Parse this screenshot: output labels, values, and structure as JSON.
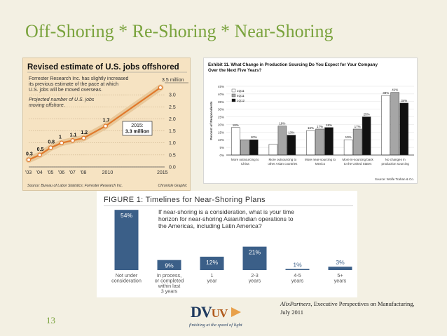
{
  "slide": {
    "title": "Off-Shoring  * Re-Shoring * Near-Shoring",
    "page_number": "13",
    "logo": {
      "letters": "DV",
      "sub": "UV",
      "tagline": "finishing at the speed of light"
    },
    "citation": {
      "source": "AlixPartners",
      "rest": ", Executive Perspectives on Manufacturing, July 2011"
    }
  },
  "chart_data": [
    {
      "type": "line",
      "title": "Revised estimate of U.S. jobs offshored",
      "description": [
        "Forrester Research Inc. has slightly increased",
        "its previous estimate of the pace at which",
        "U.S. jobs will be moved overseas."
      ],
      "series_note": [
        "Projected number of U.S. jobs",
        "moving offshore."
      ],
      "x": [
        2003,
        2004,
        2005,
        2006,
        2007,
        2008,
        2010,
        2015
      ],
      "x_tick_labels": [
        "'03",
        "'04",
        "'05",
        "'06",
        "'07",
        "'08",
        "2010",
        "2015"
      ],
      "values": [
        0.3,
        0.5,
        0.8,
        1,
        1.1,
        1.2,
        1.7,
        3.3
      ],
      "value_labels": [
        "0.3",
        "0.5",
        "0.8",
        "1",
        "1.1",
        "1.2",
        "1.7",
        ""
      ],
      "ylim": [
        0,
        3.5
      ],
      "y_ticks": [
        0,
        0.5,
        1.0,
        1.5,
        2.0,
        2.5,
        3.0
      ],
      "y_tick_labels": [
        "0.0",
        "0.5",
        "1.0",
        "1.5",
        "2.0",
        "2.5",
        "3.0"
      ],
      "y_top_label": "3.5 million",
      "callout": {
        "line1": "2015:",
        "line2": "3.3 million"
      },
      "source": "Source: Bureau of Labor Statistics; Forrester Research Inc.",
      "credit": "Chronicle Graphic",
      "colors": {
        "line": "#e0792b",
        "marker": "#ffffff",
        "band": "#e8c89a"
      }
    },
    {
      "type": "bar",
      "title": "Exhibit 11. What Change in Production Sourcing Do You Expect for Your Company Over the Next Five Years?",
      "ylabel": "Percent of Respondents",
      "ylim": [
        0,
        45
      ],
      "y_ticks": [
        0,
        5,
        10,
        15,
        20,
        25,
        30,
        35,
        40,
        45
      ],
      "categories": [
        [
          "More outsourcing to",
          "China"
        ],
        [
          "More outsourcing to",
          "other Asian countries"
        ],
        [
          "More near-sourcing to",
          "Mexico"
        ],
        [
          "More in-sourcing back",
          "to the United States"
        ],
        [
          "No changes in",
          "production sourcing"
        ]
      ],
      "series": [
        {
          "name": "1Q11",
          "values": [
            18,
            7,
            16,
            10,
            39
          ],
          "color": "#ffffff"
        },
        {
          "name": "4Q11",
          "values": [
            10,
            19,
            17,
            17,
            41
          ],
          "color": "#a6a6a6"
        },
        {
          "name": "1Q12",
          "values": [
            10,
            13,
            18,
            25,
            34
          ],
          "color": "#111111"
        }
      ],
      "value_labels": [
        [
          "18%",
          "",
          "",
          "10%"
        ],
        [
          "7%",
          "18%",
          "19%",
          "13%"
        ],
        [
          "16%",
          "17%",
          "18%"
        ],
        [
          "10%",
          "17%",
          "25%"
        ],
        [
          "39%",
          "41%",
          "34%"
        ]
      ],
      "bar_labels": [
        [
          "18%",
          "",
          "10%"
        ],
        [
          "",
          "19%",
          "13%"
        ],
        [
          "16%",
          "17%",
          "18%"
        ],
        [
          "10%",
          "17%",
          "25%"
        ],
        [
          "39%",
          "41%",
          "34%"
        ]
      ],
      "source": "Source: Wolfe Trahan & Co."
    },
    {
      "type": "bar",
      "title": "FIGURE  1: Timelines for Near-Shoring Plans",
      "question": [
        "If near-shoring is a consideration, what is your time",
        "horizon for near-shoring Asian/Indian operations to",
        "the Americas, including Latin America?"
      ],
      "categories": [
        [
          "Not under",
          "consideration"
        ],
        [
          "In process,",
          "or completed",
          "within last",
          "3 years"
        ],
        [
          "1",
          "year"
        ],
        [
          "2-3",
          "years"
        ],
        [
          "4-5",
          "years"
        ],
        [
          "5+",
          "years"
        ]
      ],
      "values": [
        54,
        9,
        12,
        21,
        1,
        3
      ],
      "value_labels": [
        "54%",
        "9%",
        "12%",
        "21%",
        "1%",
        "3%"
      ],
      "ylim": [
        0,
        56
      ],
      "colors": {
        "bar": "#3b5f88",
        "label": "#ffffff"
      }
    }
  ]
}
